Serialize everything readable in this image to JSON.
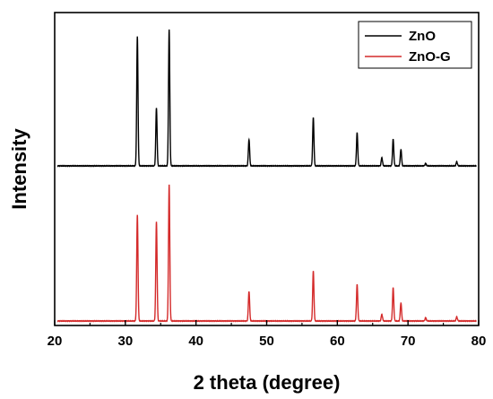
{
  "chart_data": {
    "type": "line",
    "xlabel": "2 theta (degree)",
    "ylabel": "Intensity",
    "xlim": [
      20,
      80
    ],
    "xticks": [
      20,
      30,
      40,
      50,
      60,
      70,
      80
    ],
    "y_tick_labels_shown": false,
    "grid": false,
    "legend_position": "top-right",
    "series": [
      {
        "name": "ZnO",
        "color": "#000000",
        "baseline": 0,
        "peaks": [
          {
            "x": 31.7,
            "y": 0.78
          },
          {
            "x": 34.4,
            "y": 0.35
          },
          {
            "x": 36.2,
            "y": 0.82
          },
          {
            "x": 47.5,
            "y": 0.16
          },
          {
            "x": 56.6,
            "y": 0.29
          },
          {
            "x": 62.8,
            "y": 0.2
          },
          {
            "x": 66.3,
            "y": 0.05
          },
          {
            "x": 67.9,
            "y": 0.16
          },
          {
            "x": 69.0,
            "y": 0.1
          },
          {
            "x": 72.5,
            "y": 0.015
          },
          {
            "x": 76.9,
            "y": 0.025
          }
        ]
      },
      {
        "name": "ZnO-G",
        "color": "#d42a2a",
        "baseline": 0,
        "peaks": [
          {
            "x": 31.7,
            "y": 0.64
          },
          {
            "x": 34.4,
            "y": 0.6
          },
          {
            "x": 36.2,
            "y": 0.82
          },
          {
            "x": 47.5,
            "y": 0.18
          },
          {
            "x": 56.6,
            "y": 0.3
          },
          {
            "x": 62.8,
            "y": 0.22
          },
          {
            "x": 66.3,
            "y": 0.04
          },
          {
            "x": 67.9,
            "y": 0.2
          },
          {
            "x": 69.0,
            "y": 0.11
          },
          {
            "x": 72.5,
            "y": 0.02
          },
          {
            "x": 76.9,
            "y": 0.025
          }
        ]
      }
    ]
  }
}
